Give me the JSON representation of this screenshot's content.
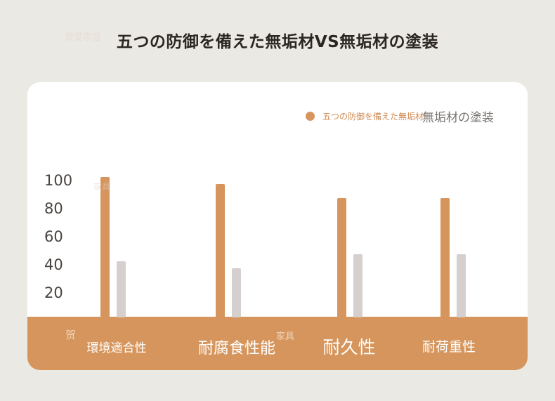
{
  "title": "五つの防御を備えた無垢材VS無垢材の塗装",
  "watermarks": [
    "贺爱家居",
    "家具",
    "贺",
    "家具"
  ],
  "chart_data": {
    "type": "bar",
    "categories": [
      "環境適合性",
      "耐腐食性能",
      "耐久性",
      "耐荷重性"
    ],
    "series": [
      {
        "name": "五つの防御を備えた無垢材",
        "color": "#d5955c",
        "values": [
          100,
          95,
          85,
          85
        ]
      },
      {
        "name": "無垢材の塗装",
        "color": "#d5cfcd",
        "values": [
          40,
          35,
          45,
          45
        ]
      }
    ],
    "yticks": [
      "100",
      "80",
      "60",
      "40",
      "20"
    ],
    "legend": {
      "position": "top-right"
    },
    "ylim": [
      0,
      110
    ]
  }
}
